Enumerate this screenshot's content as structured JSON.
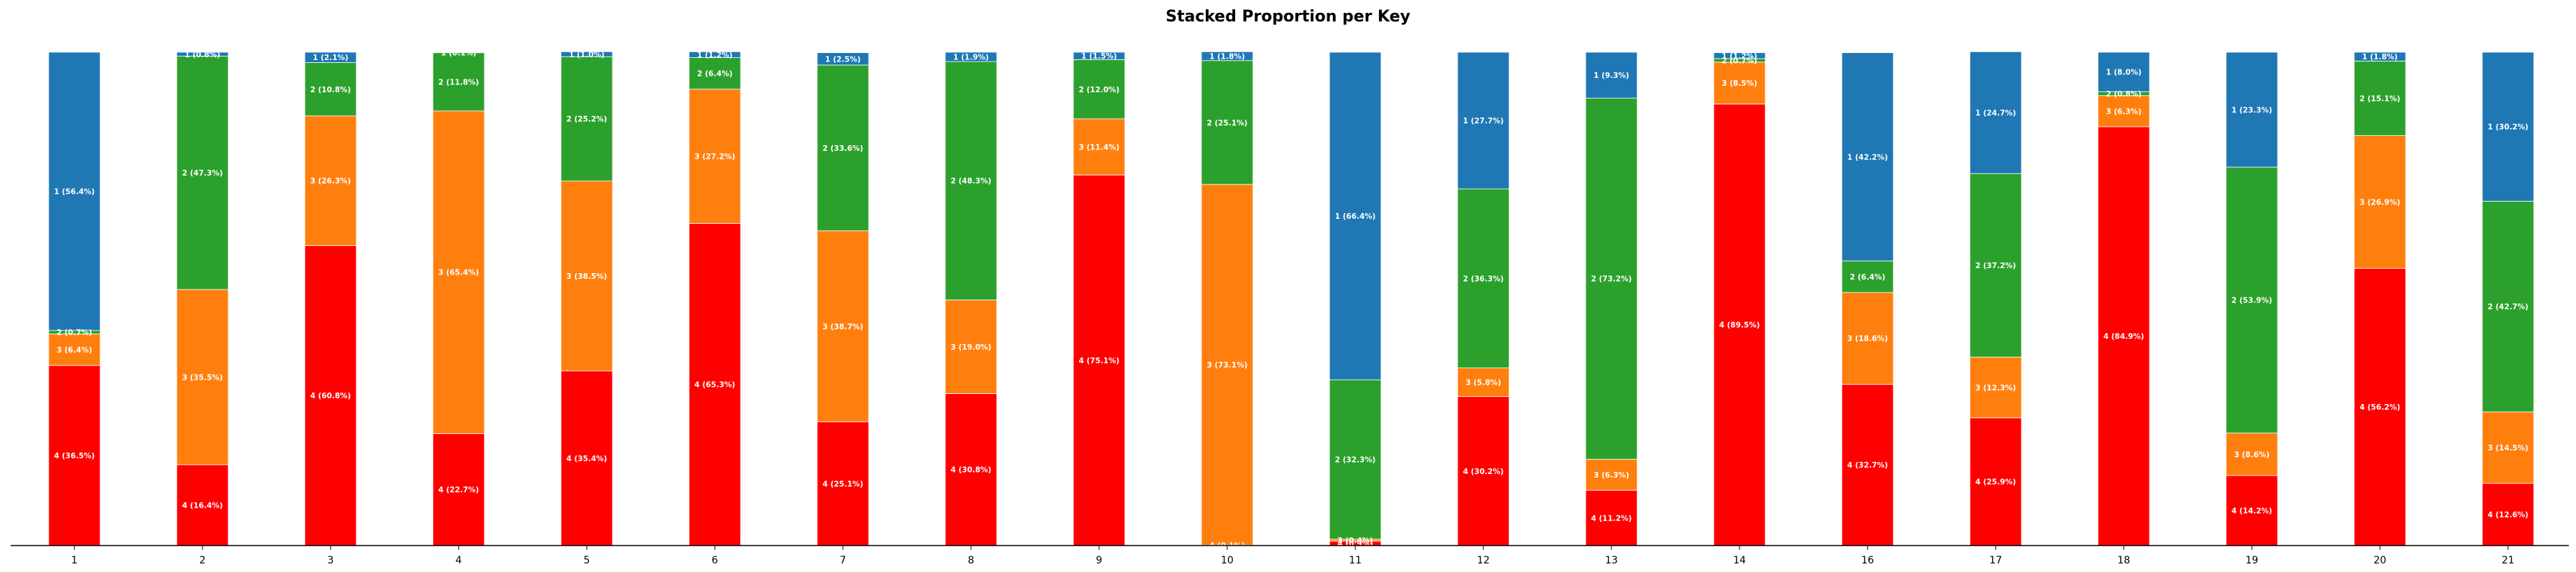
{
  "chart_data": {
    "type": "bar",
    "stacked": true,
    "title": "Stacked Proportion per Key",
    "xlabel": "",
    "ylabel": "",
    "ylim": [
      0,
      100
    ],
    "grid": false,
    "categories": [
      "1",
      "2",
      "3",
      "4",
      "5",
      "6",
      "7",
      "8",
      "9",
      "10",
      "11",
      "12",
      "13",
      "14",
      "16",
      "17",
      "18",
      "19",
      "20",
      "21"
    ],
    "stack_order": [
      "4",
      "3",
      "2",
      "1"
    ],
    "colors": {
      "4": "#ff0000",
      "3": "#ff7f0e",
      "2": "#2ca02c",
      "1": "#1f77b4"
    },
    "series": [
      {
        "name": "4",
        "values": [
          36.5,
          16.4,
          60.8,
          22.7,
          35.4,
          65.3,
          25.1,
          30.8,
          75.1,
          0.1,
          0.9,
          30.2,
          11.2,
          89.5,
          32.7,
          25.9,
          84.9,
          14.2,
          56.2,
          12.6
        ],
        "labels": [
          "4 (36.5%)",
          "4 (16.4%)",
          "4 (60.8%)",
          "4 (22.7%)",
          "4 (35.4%)",
          "4 (65.3%)",
          "4 (25.1%)",
          "4 (30.8%)",
          "4 (75.1%)",
          "4 (0.1%)",
          "4 (0.9%)",
          "4 (30.2%)",
          "4 (11.2%)",
          "4 (89.5%)",
          "4 (32.7%)",
          "4 (25.9%)",
          "4 (84.9%)",
          "4 (14.2%)",
          "4 (56.2%)",
          "4 (12.6%)"
        ]
      },
      {
        "name": "3",
        "values": [
          6.4,
          35.5,
          26.3,
          65.4,
          38.5,
          27.2,
          38.7,
          19.0,
          11.4,
          73.1,
          0.4,
          5.8,
          6.3,
          8.5,
          18.6,
          12.3,
          6.3,
          8.6,
          26.9,
          14.5
        ],
        "labels": [
          "3 (6.4%)",
          "3 (35.5%)",
          "3 (26.3%)",
          "3 (65.4%)",
          "3 (38.5%)",
          "3 (27.2%)",
          "3 (38.7%)",
          "3 (19.0%)",
          "3 (11.4%)",
          "3 (73.1%)",
          "3 (0.4%)",
          "3 (5.8%)",
          "3 (6.3%)",
          "3 (8.5%)",
          "3 (18.6%)",
          "3 (12.3%)",
          "3 (6.3%)",
          "3 (8.6%)",
          "3 (26.9%)",
          "3 (14.5%)"
        ]
      },
      {
        "name": "2",
        "values": [
          0.7,
          47.3,
          10.8,
          11.8,
          25.2,
          6.4,
          33.6,
          48.3,
          12.0,
          25.1,
          32.3,
          36.3,
          73.2,
          0.7,
          6.4,
          37.2,
          0.8,
          53.9,
          15.1,
          42.7
        ],
        "labels": [
          "2 (0.7%)",
          "2 (47.3%)",
          "2 (10.8%)",
          "2 (11.8%)",
          "2 (25.2%)",
          "2 (6.4%)",
          "2 (33.6%)",
          "2 (48.3%)",
          "2 (12.0%)",
          "2 (25.1%)",
          "2 (32.3%)",
          "2 (36.3%)",
          "2 (73.2%)",
          "2 (0.7%)",
          "2 (6.4%)",
          "2 (37.2%)",
          "2 (0.8%)",
          "2 (53.9%)",
          "2 (15.1%)",
          "2 (42.7%)"
        ]
      },
      {
        "name": "1",
        "values": [
          56.4,
          0.8,
          2.1,
          0.1,
          1.0,
          1.2,
          2.5,
          1.9,
          1.5,
          1.8,
          66.4,
          27.7,
          9.3,
          1.2,
          42.2,
          24.7,
          8.0,
          23.3,
          1.8,
          30.2
        ],
        "labels": [
          "1 (56.4%)",
          "1 (0.8%)",
          "1 (2.1%)",
          "1 (0.1%)",
          "1 (1.0%)",
          "1 (1.2%)",
          "1 (2.5%)",
          "1 (1.9%)",
          "1 (1.5%)",
          "1 (1.8%)",
          "1 (66.4%)",
          "1 (27.7%)",
          "1 (9.3%)",
          "1 (1.2%)",
          "1 (42.2%)",
          "1 (24.7%)",
          "1 (8.0%)",
          "1 (23.3%)",
          "1 (1.8%)",
          "1 (30.2%)"
        ]
      }
    ]
  }
}
